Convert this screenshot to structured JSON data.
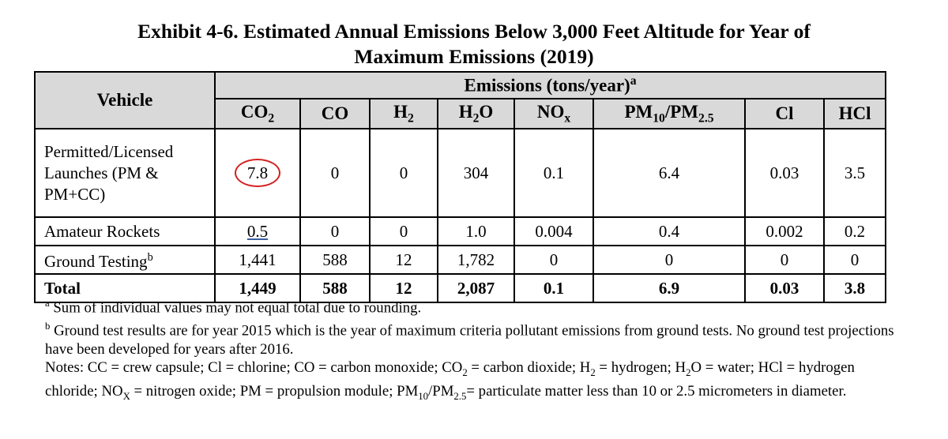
{
  "title": {
    "line1": "Exhibit 4-6. Estimated Annual Emissions Below 3,000 Feet Altitude for Year of",
    "line2": "Maximum Emissions (2019)"
  },
  "table": {
    "vehicle_header": "Vehicle",
    "group_header": "Emissions (tons/year)",
    "group_header_sup": "a",
    "columns": [
      {
        "base": "CO",
        "sub": "2",
        "tail": ""
      },
      {
        "base": "CO",
        "sub": "",
        "tail": ""
      },
      {
        "base": "H",
        "sub": "2",
        "tail": ""
      },
      {
        "base": "H",
        "sub": "2",
        "tail": "O"
      },
      {
        "base": "NO",
        "sub": "x",
        "tail": ""
      },
      {
        "base": "PM",
        "sub": "10",
        "tail": "/PM",
        "sub2": "2.5"
      },
      {
        "base": "Cl",
        "sub": "",
        "tail": ""
      },
      {
        "base": "HCl",
        "sub": "",
        "tail": ""
      }
    ],
    "rows": [
      {
        "label": "Permitted/Licensed Launches (PM & PM+CC)",
        "label_sup": "",
        "values": [
          "7.8",
          "0",
          "0",
          "304",
          "0.1",
          "6.4",
          "0.03",
          "3.5"
        ]
      },
      {
        "label": "Amateur Rockets",
        "label_sup": "",
        "values": [
          "0.5",
          "0",
          "0",
          "1.0",
          "0.004",
          "0.4",
          "0.002",
          "0.2"
        ]
      },
      {
        "label": "Ground Testing",
        "label_sup": "b",
        "values": [
          "1,441",
          "588",
          "12",
          "1,782",
          "0",
          "0",
          "0",
          "0"
        ]
      },
      {
        "label": "Total",
        "label_sup": "",
        "values": [
          "1,449",
          "588",
          "12",
          "2,087",
          "0.1",
          "6.9",
          "0.03",
          "3.8"
        ]
      }
    ]
  },
  "notes": {
    "a_mark": "a",
    "a_text": " Sum of individual values may not equal total due to rounding.",
    "b_mark": "b",
    "b_text": " Ground test results are for year 2015 which is the year of maximum criteria pollutant emissions from ground tests.  No ground test projections have been developed for years after 2016.",
    "n1": "Notes:  CC = crew capsule; Cl = chlorine; CO = carbon monoxide; CO",
    "n1_sub1": "2",
    "n2": " = carbon dioxide; H",
    "n2_sub": "2",
    "n3": " = hydrogen; H",
    "n3_sub": "2",
    "n4": "O = water; HCl = hydrogen chloride; NO",
    "n4_sub": "X",
    "n5": " = nitrogen oxide; PM = propulsion module; PM",
    "n5_sub": "10",
    "n6": "/PM",
    "n6_sub": "2.5",
    "n7": "= particulate matter less than 10 or 2.5 micrometers in diameter."
  },
  "annotation_color": "#d42020"
}
